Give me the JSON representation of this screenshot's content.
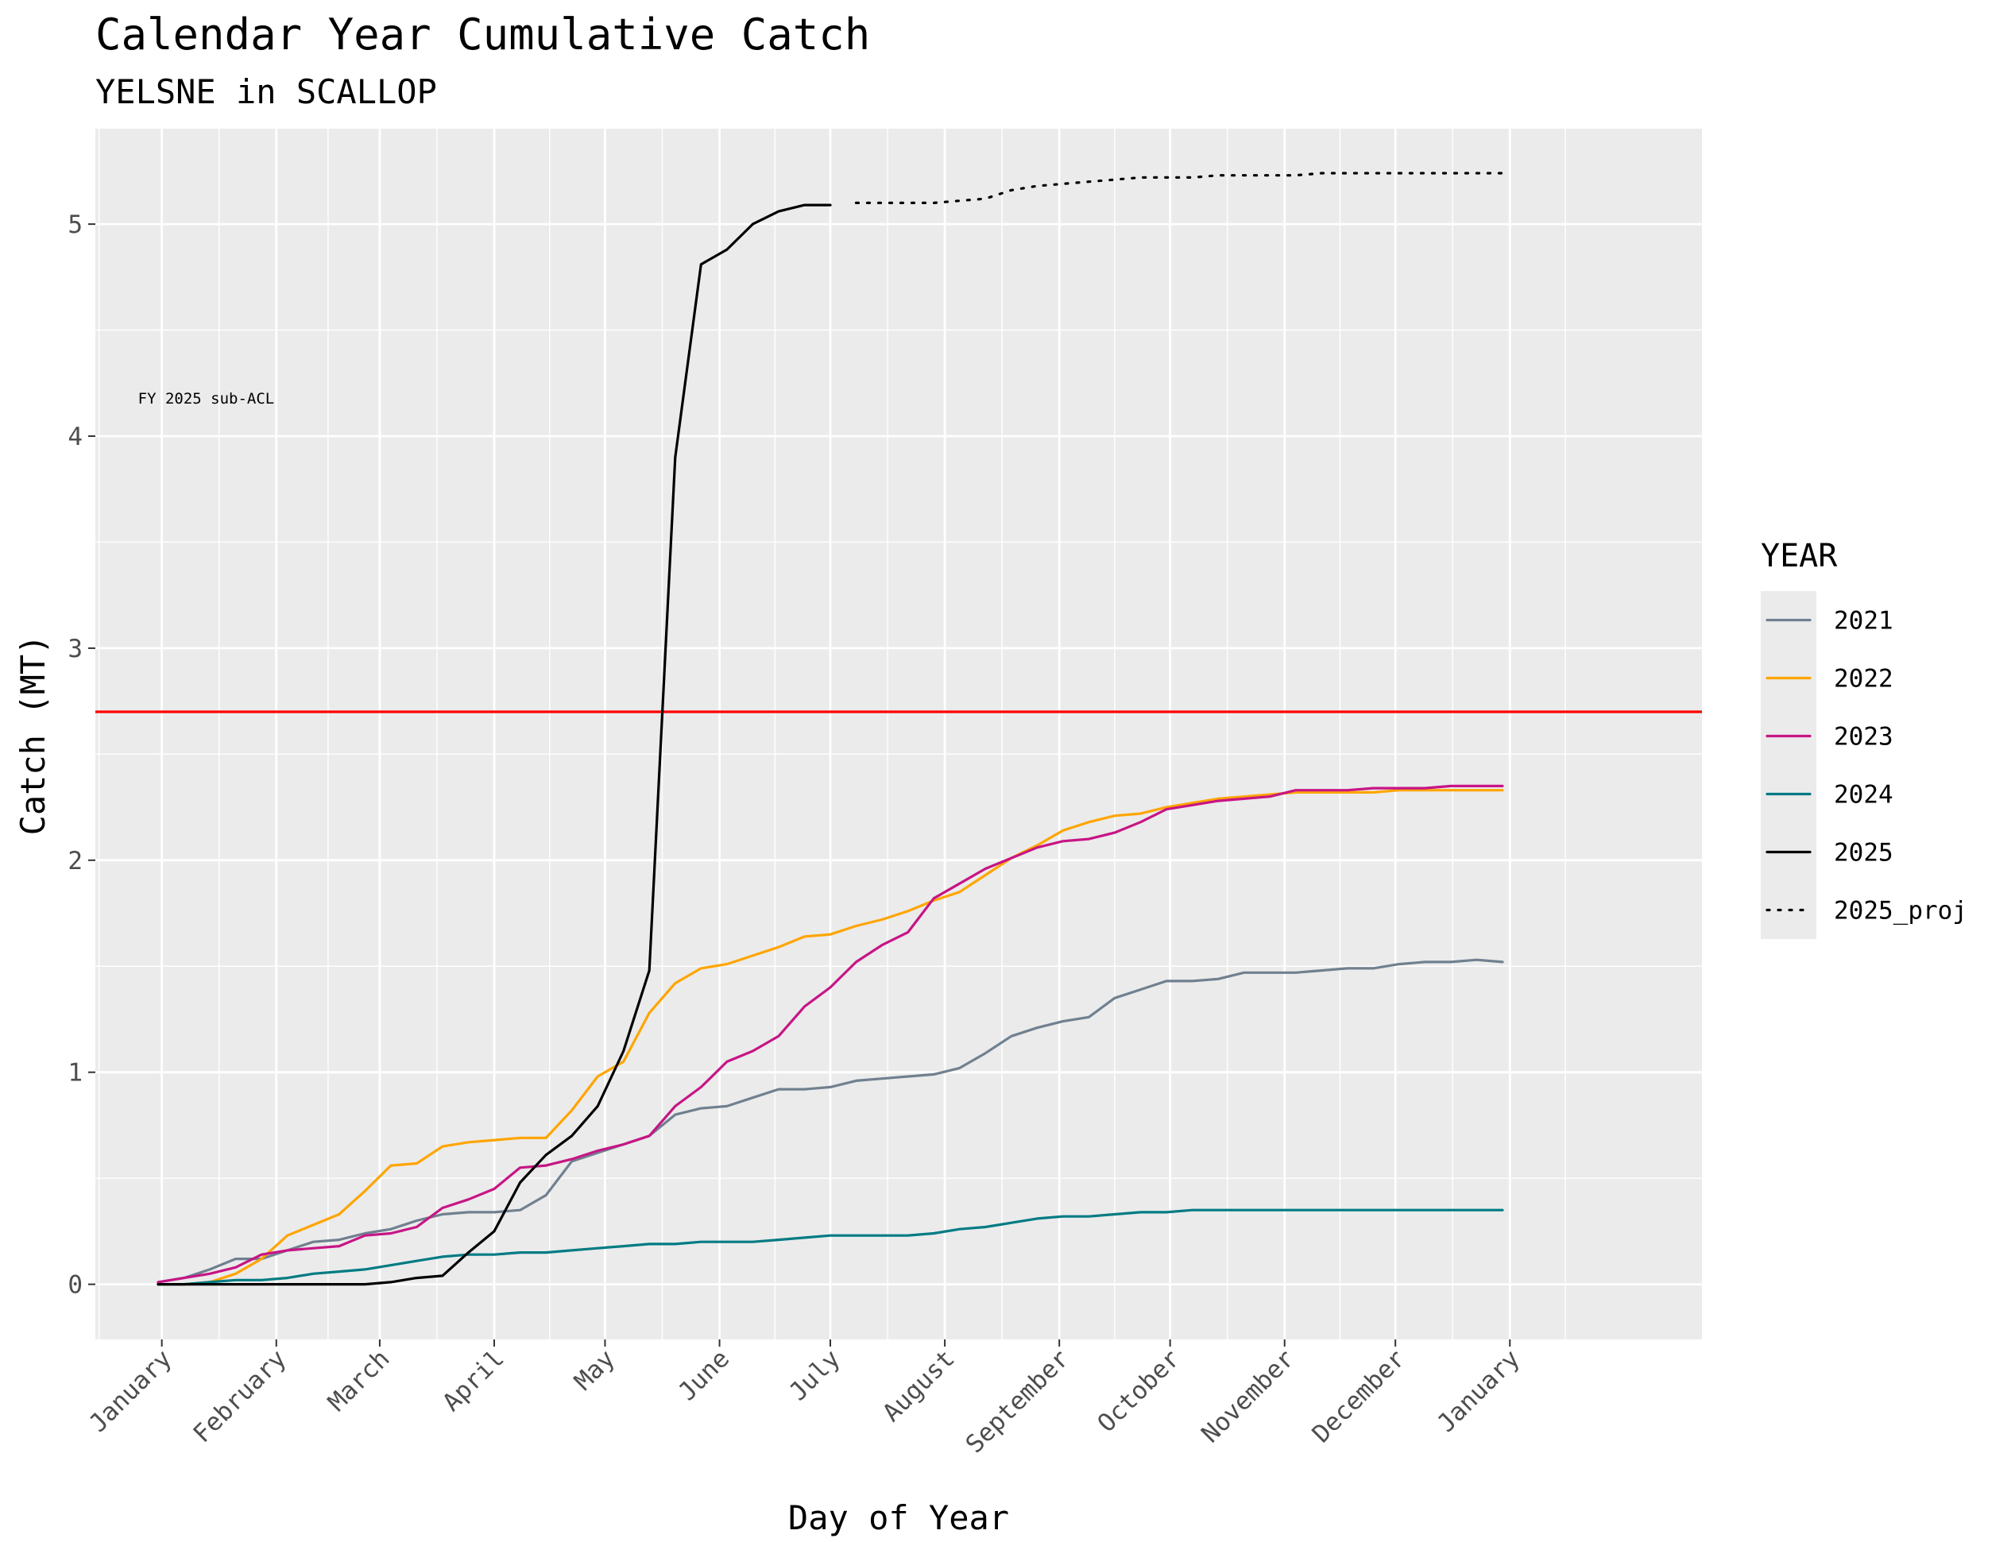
{
  "chart_data": {
    "type": "line",
    "title": "Calendar Year Cumulative Catch",
    "subtitle": "YELSNE in SCALLOP",
    "xlabel": "Day of Year",
    "ylabel": "Catch (MT)",
    "xlim": [
      -17,
      418
    ],
    "ylim": [
      -0.26,
      5.45
    ],
    "x_ticks": [
      {
        "label": "January",
        "day": 1
      },
      {
        "label": "February",
        "day": 32
      },
      {
        "label": "March",
        "day": 60
      },
      {
        "label": "April",
        "day": 91
      },
      {
        "label": "May",
        "day": 121
      },
      {
        "label": "June",
        "day": 152
      },
      {
        "label": "July",
        "day": 182
      },
      {
        "label": "August",
        "day": 213
      },
      {
        "label": "September",
        "day": 244
      },
      {
        "label": "October",
        "day": 274
      },
      {
        "label": "November",
        "day": 305
      },
      {
        "label": "December",
        "day": 335
      },
      {
        "label": "January",
        "day": 366
      }
    ],
    "y_ticks": [
      0,
      1,
      2,
      3,
      4,
      5
    ],
    "grid": true,
    "reference_line": {
      "y": 2.7,
      "color": "#ff0000",
      "label": "FY 2025 sub-ACL",
      "label_x": 1,
      "label_y": 4.18
    },
    "legend_title": "YEAR",
    "legend_position": "right",
    "series": [
      {
        "name": "2021",
        "color": "#708090",
        "dash": "solid",
        "points": [
          [
            0,
            0.01
          ],
          [
            7,
            0.03
          ],
          [
            14,
            0.07
          ],
          [
            21,
            0.12
          ],
          [
            28,
            0.12
          ],
          [
            35,
            0.16
          ],
          [
            42,
            0.2
          ],
          [
            49,
            0.21
          ],
          [
            56,
            0.24
          ],
          [
            63,
            0.26
          ],
          [
            70,
            0.3
          ],
          [
            77,
            0.33
          ],
          [
            84,
            0.34
          ],
          [
            91,
            0.34
          ],
          [
            98,
            0.35
          ],
          [
            105,
            0.42
          ],
          [
            112,
            0.58
          ],
          [
            119,
            0.62
          ],
          [
            126,
            0.66
          ],
          [
            133,
            0.7
          ],
          [
            140,
            0.8
          ],
          [
            147,
            0.83
          ],
          [
            154,
            0.84
          ],
          [
            161,
            0.88
          ],
          [
            168,
            0.92
          ],
          [
            175,
            0.92
          ],
          [
            182,
            0.93
          ],
          [
            189,
            0.96
          ],
          [
            196,
            0.97
          ],
          [
            203,
            0.98
          ],
          [
            210,
            0.99
          ],
          [
            217,
            1.02
          ],
          [
            224,
            1.09
          ],
          [
            231,
            1.17
          ],
          [
            238,
            1.21
          ],
          [
            245,
            1.24
          ],
          [
            252,
            1.26
          ],
          [
            259,
            1.35
          ],
          [
            266,
            1.39
          ],
          [
            273,
            1.43
          ],
          [
            280,
            1.43
          ],
          [
            287,
            1.44
          ],
          [
            294,
            1.47
          ],
          [
            301,
            1.47
          ],
          [
            308,
            1.47
          ],
          [
            315,
            1.48
          ],
          [
            322,
            1.49
          ],
          [
            329,
            1.49
          ],
          [
            336,
            1.51
          ],
          [
            343,
            1.52
          ],
          [
            350,
            1.52
          ],
          [
            357,
            1.53
          ],
          [
            364,
            1.52
          ]
        ]
      },
      {
        "name": "2022",
        "color": "#ffa500",
        "dash": "solid",
        "points": [
          [
            0,
            0.0
          ],
          [
            7,
            0.0
          ],
          [
            14,
            0.01
          ],
          [
            21,
            0.05
          ],
          [
            28,
            0.12
          ],
          [
            35,
            0.23
          ],
          [
            42,
            0.28
          ],
          [
            49,
            0.33
          ],
          [
            56,
            0.44
          ],
          [
            63,
            0.56
          ],
          [
            70,
            0.57
          ],
          [
            77,
            0.65
          ],
          [
            84,
            0.67
          ],
          [
            91,
            0.68
          ],
          [
            98,
            0.69
          ],
          [
            105,
            0.69
          ],
          [
            112,
            0.82
          ],
          [
            119,
            0.98
          ],
          [
            126,
            1.05
          ],
          [
            133,
            1.28
          ],
          [
            140,
            1.42
          ],
          [
            147,
            1.49
          ],
          [
            154,
            1.51
          ],
          [
            161,
            1.55
          ],
          [
            168,
            1.59
          ],
          [
            175,
            1.64
          ],
          [
            182,
            1.65
          ],
          [
            189,
            1.69
          ],
          [
            196,
            1.72
          ],
          [
            203,
            1.76
          ],
          [
            210,
            1.81
          ],
          [
            217,
            1.85
          ],
          [
            224,
            1.93
          ],
          [
            231,
            2.01
          ],
          [
            238,
            2.07
          ],
          [
            245,
            2.14
          ],
          [
            252,
            2.18
          ],
          [
            259,
            2.21
          ],
          [
            266,
            2.22
          ],
          [
            273,
            2.25
          ],
          [
            280,
            2.27
          ],
          [
            287,
            2.29
          ],
          [
            294,
            2.3
          ],
          [
            301,
            2.31
          ],
          [
            308,
            2.32
          ],
          [
            315,
            2.32
          ],
          [
            322,
            2.32
          ],
          [
            329,
            2.32
          ],
          [
            336,
            2.33
          ],
          [
            343,
            2.33
          ],
          [
            350,
            2.33
          ],
          [
            357,
            2.33
          ],
          [
            364,
            2.33
          ]
        ]
      },
      {
        "name": "2023",
        "color": "#c71585",
        "dash": "solid",
        "points": [
          [
            0,
            0.01
          ],
          [
            7,
            0.03
          ],
          [
            14,
            0.05
          ],
          [
            21,
            0.08
          ],
          [
            28,
            0.14
          ],
          [
            35,
            0.16
          ],
          [
            42,
            0.17
          ],
          [
            49,
            0.18
          ],
          [
            56,
            0.23
          ],
          [
            63,
            0.24
          ],
          [
            70,
            0.27
          ],
          [
            77,
            0.36
          ],
          [
            84,
            0.4
          ],
          [
            91,
            0.45
          ],
          [
            98,
            0.55
          ],
          [
            105,
            0.56
          ],
          [
            112,
            0.59
          ],
          [
            119,
            0.63
          ],
          [
            126,
            0.66
          ],
          [
            133,
            0.7
          ],
          [
            140,
            0.84
          ],
          [
            147,
            0.93
          ],
          [
            154,
            1.05
          ],
          [
            161,
            1.1
          ],
          [
            168,
            1.17
          ],
          [
            175,
            1.31
          ],
          [
            182,
            1.4
          ],
          [
            189,
            1.52
          ],
          [
            196,
            1.6
          ],
          [
            203,
            1.66
          ],
          [
            210,
            1.82
          ],
          [
            217,
            1.89
          ],
          [
            224,
            1.96
          ],
          [
            231,
            2.01
          ],
          [
            238,
            2.06
          ],
          [
            245,
            2.09
          ],
          [
            252,
            2.1
          ],
          [
            259,
            2.13
          ],
          [
            266,
            2.18
          ],
          [
            273,
            2.24
          ],
          [
            280,
            2.26
          ],
          [
            287,
            2.28
          ],
          [
            294,
            2.29
          ],
          [
            301,
            2.3
          ],
          [
            308,
            2.33
          ],
          [
            315,
            2.33
          ],
          [
            322,
            2.33
          ],
          [
            329,
            2.34
          ],
          [
            336,
            2.34
          ],
          [
            343,
            2.34
          ],
          [
            350,
            2.35
          ],
          [
            357,
            2.35
          ],
          [
            364,
            2.35
          ]
        ]
      },
      {
        "name": "2024",
        "color": "#007b83",
        "dash": "solid",
        "points": [
          [
            0,
            0.0
          ],
          [
            7,
            0.0
          ],
          [
            14,
            0.01
          ],
          [
            21,
            0.02
          ],
          [
            28,
            0.02
          ],
          [
            35,
            0.03
          ],
          [
            42,
            0.05
          ],
          [
            49,
            0.06
          ],
          [
            56,
            0.07
          ],
          [
            63,
            0.09
          ],
          [
            70,
            0.11
          ],
          [
            77,
            0.13
          ],
          [
            84,
            0.14
          ],
          [
            91,
            0.14
          ],
          [
            98,
            0.15
          ],
          [
            105,
            0.15
          ],
          [
            112,
            0.16
          ],
          [
            119,
            0.17
          ],
          [
            126,
            0.18
          ],
          [
            133,
            0.19
          ],
          [
            140,
            0.19
          ],
          [
            147,
            0.2
          ],
          [
            154,
            0.2
          ],
          [
            161,
            0.2
          ],
          [
            168,
            0.21
          ],
          [
            175,
            0.22
          ],
          [
            182,
            0.23
          ],
          [
            189,
            0.23
          ],
          [
            196,
            0.23
          ],
          [
            203,
            0.23
          ],
          [
            210,
            0.24
          ],
          [
            217,
            0.26
          ],
          [
            224,
            0.27
          ],
          [
            231,
            0.29
          ],
          [
            238,
            0.31
          ],
          [
            245,
            0.32
          ],
          [
            252,
            0.32
          ],
          [
            259,
            0.33
          ],
          [
            266,
            0.34
          ],
          [
            273,
            0.34
          ],
          [
            280,
            0.35
          ],
          [
            287,
            0.35
          ],
          [
            294,
            0.35
          ],
          [
            301,
            0.35
          ],
          [
            308,
            0.35
          ],
          [
            315,
            0.35
          ],
          [
            322,
            0.35
          ],
          [
            329,
            0.35
          ],
          [
            336,
            0.35
          ],
          [
            343,
            0.35
          ],
          [
            350,
            0.35
          ],
          [
            357,
            0.35
          ],
          [
            364,
            0.35
          ]
        ]
      },
      {
        "name": "2025",
        "color": "#000000",
        "dash": "solid",
        "points": [
          [
            0,
            0.0
          ],
          [
            7,
            0.0
          ],
          [
            14,
            0.0
          ],
          [
            21,
            0.0
          ],
          [
            28,
            0.0
          ],
          [
            35,
            0.0
          ],
          [
            42,
            0.0
          ],
          [
            49,
            0.0
          ],
          [
            56,
            0.0
          ],
          [
            63,
            0.01
          ],
          [
            70,
            0.03
          ],
          [
            77,
            0.04
          ],
          [
            84,
            0.15
          ],
          [
            91,
            0.25
          ],
          [
            98,
            0.48
          ],
          [
            105,
            0.61
          ],
          [
            112,
            0.7
          ],
          [
            119,
            0.84
          ],
          [
            126,
            1.1
          ],
          [
            133,
            1.48
          ],
          [
            140,
            3.9
          ],
          [
            147,
            4.81
          ],
          [
            154,
            4.88
          ],
          [
            161,
            5.0
          ],
          [
            168,
            5.06
          ],
          [
            175,
            5.09
          ],
          [
            182,
            5.09
          ]
        ]
      },
      {
        "name": "2025_proj",
        "color": "#000000",
        "dash": "dotted",
        "points": [
          [
            189,
            5.1
          ],
          [
            196,
            5.1
          ],
          [
            203,
            5.1
          ],
          [
            210,
            5.1
          ],
          [
            217,
            5.11
          ],
          [
            224,
            5.12
          ],
          [
            231,
            5.16
          ],
          [
            238,
            5.18
          ],
          [
            245,
            5.19
          ],
          [
            252,
            5.2
          ],
          [
            259,
            5.21
          ],
          [
            266,
            5.22
          ],
          [
            273,
            5.22
          ],
          [
            280,
            5.22
          ],
          [
            287,
            5.23
          ],
          [
            294,
            5.23
          ],
          [
            301,
            5.23
          ],
          [
            308,
            5.23
          ],
          [
            315,
            5.24
          ],
          [
            322,
            5.24
          ],
          [
            329,
            5.24
          ],
          [
            336,
            5.24
          ],
          [
            343,
            5.24
          ],
          [
            350,
            5.24
          ],
          [
            357,
            5.24
          ],
          [
            364,
            5.24
          ]
        ]
      }
    ]
  }
}
